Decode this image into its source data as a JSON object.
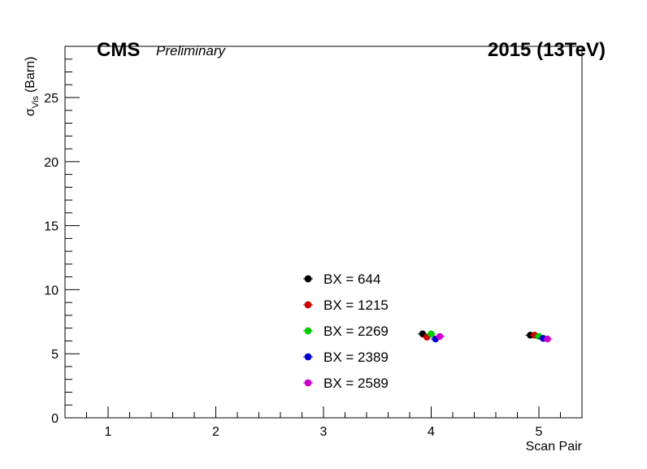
{
  "chart_data": {
    "type": "scatter",
    "title": "",
    "label_cms": "CMS",
    "label_preliminary": "Preliminary",
    "label_energy": "2015  (13TeV)",
    "xlabel": "Scan Pair",
    "ylabel_sigma": "σ",
    "ylabel_sub": "Vis",
    "ylabel_unit": "(Barn)",
    "xlim": [
      0.6,
      5.4
    ],
    "ylim": [
      0,
      29
    ],
    "xticks": [
      1,
      2,
      3,
      4,
      5
    ],
    "yticks": [
      0,
      5,
      10,
      15,
      20,
      25
    ],
    "grid": false,
    "legend_position": "center-bottom",
    "series": [
      {
        "name": "BX = 644",
        "color": "#000000",
        "x": [
          3.92,
          4.92
        ],
        "y": [
          6.55,
          6.45
        ]
      },
      {
        "name": "BX = 1215",
        "color": "#cc0000",
        "x": [
          3.96,
          4.96
        ],
        "y": [
          6.3,
          6.45
        ]
      },
      {
        "name": "BX = 2269",
        "color": "#00cc00",
        "x": [
          4.0,
          5.0
        ],
        "y": [
          6.55,
          6.35
        ]
      },
      {
        "name": "BX = 2389",
        "color": "#0000cc",
        "x": [
          4.04,
          5.04
        ],
        "y": [
          6.15,
          6.2
        ]
      },
      {
        "name": "BX = 2589",
        "color": "#cc00cc",
        "x": [
          4.08,
          5.08
        ],
        "y": [
          6.35,
          6.15
        ]
      }
    ]
  }
}
